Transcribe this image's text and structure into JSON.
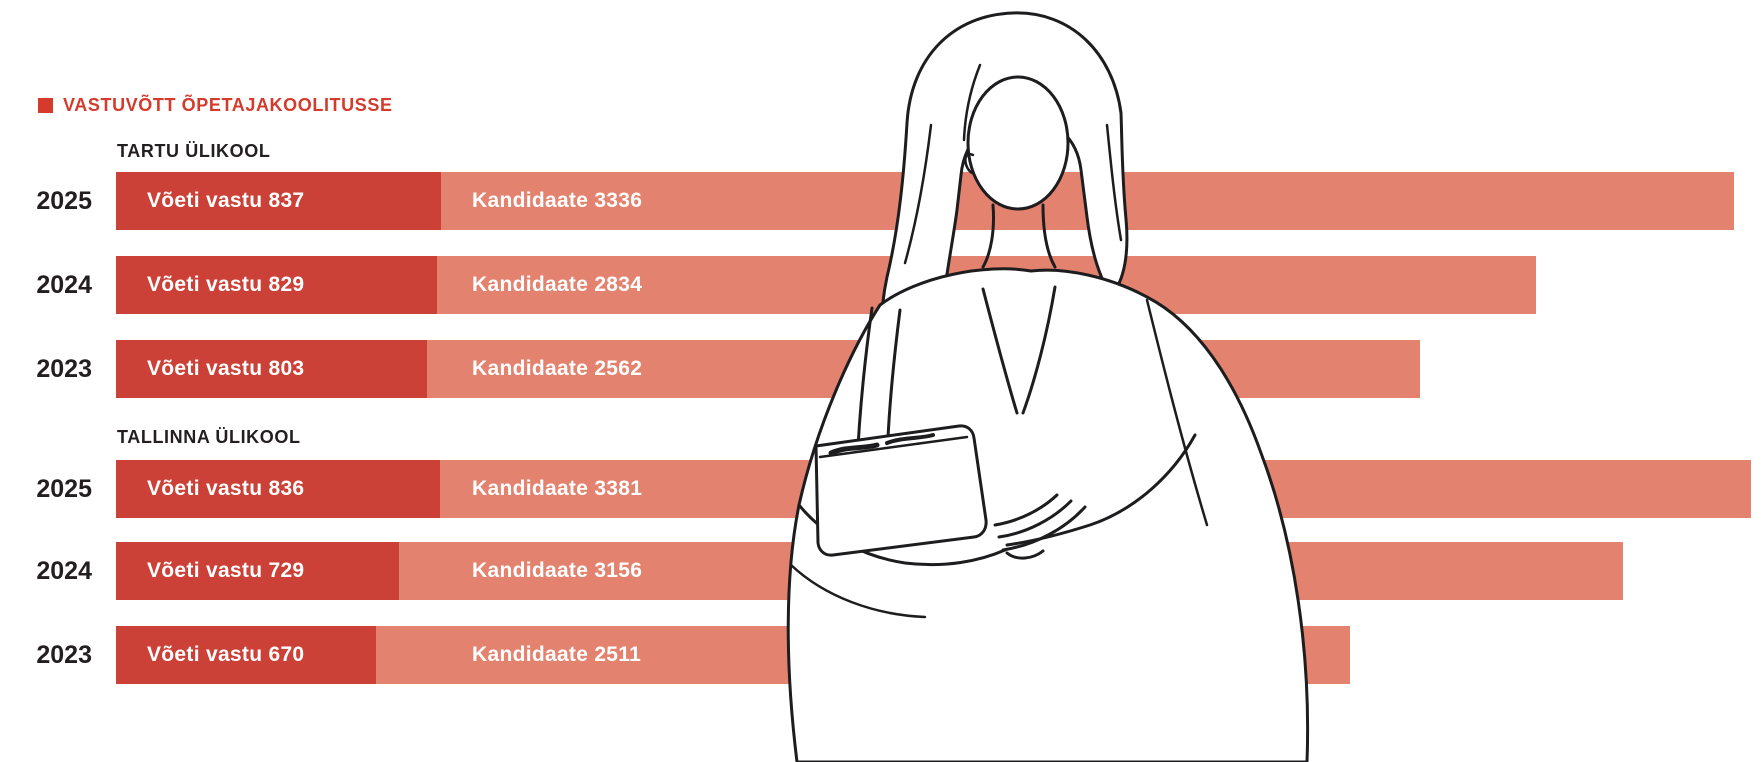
{
  "page": {
    "background": "#ffffff"
  },
  "header": {
    "title": "VASTUVÕTT ÕPETAJAKOOLITUSSE",
    "accent_color": "#d43b2c"
  },
  "chart_data": {
    "type": "bar",
    "orientation": "horizontal",
    "stacked": true,
    "series": [
      {
        "name": "Võeti vastu",
        "color": "#cc4137",
        "label_format": "Võeti vastu {n}"
      },
      {
        "name": "Kandidaate",
        "color": "#e3836f",
        "label_format": "Kandidaate {n}"
      }
    ],
    "groups": [
      {
        "label": "TARTU ÜLIKOOL",
        "rows": [
          {
            "year": "2025",
            "voeti_vastu": 837,
            "kandidaate": 3336
          },
          {
            "year": "2024",
            "voeti_vastu": 829,
            "kandidaate": 2834
          },
          {
            "year": "2023",
            "voeti_vastu": 803,
            "kandidaate": 2562
          }
        ]
      },
      {
        "label": "TALLINNA ÜLIKOOL",
        "rows": [
          {
            "year": "2025",
            "voeti_vastu": 836,
            "kandidaate": 3381
          },
          {
            "year": "2024",
            "voeti_vastu": 729,
            "kandidaate": 3156
          },
          {
            "year": "2023",
            "voeti_vastu": 670,
            "kandidaate": 2511
          }
        ]
      }
    ],
    "text_color": "#231f20",
    "bar_label_color": "#ffffff"
  },
  "illustration": {
    "name": "woman-with-book-line-art",
    "stroke_color": "#1d1d1f"
  }
}
